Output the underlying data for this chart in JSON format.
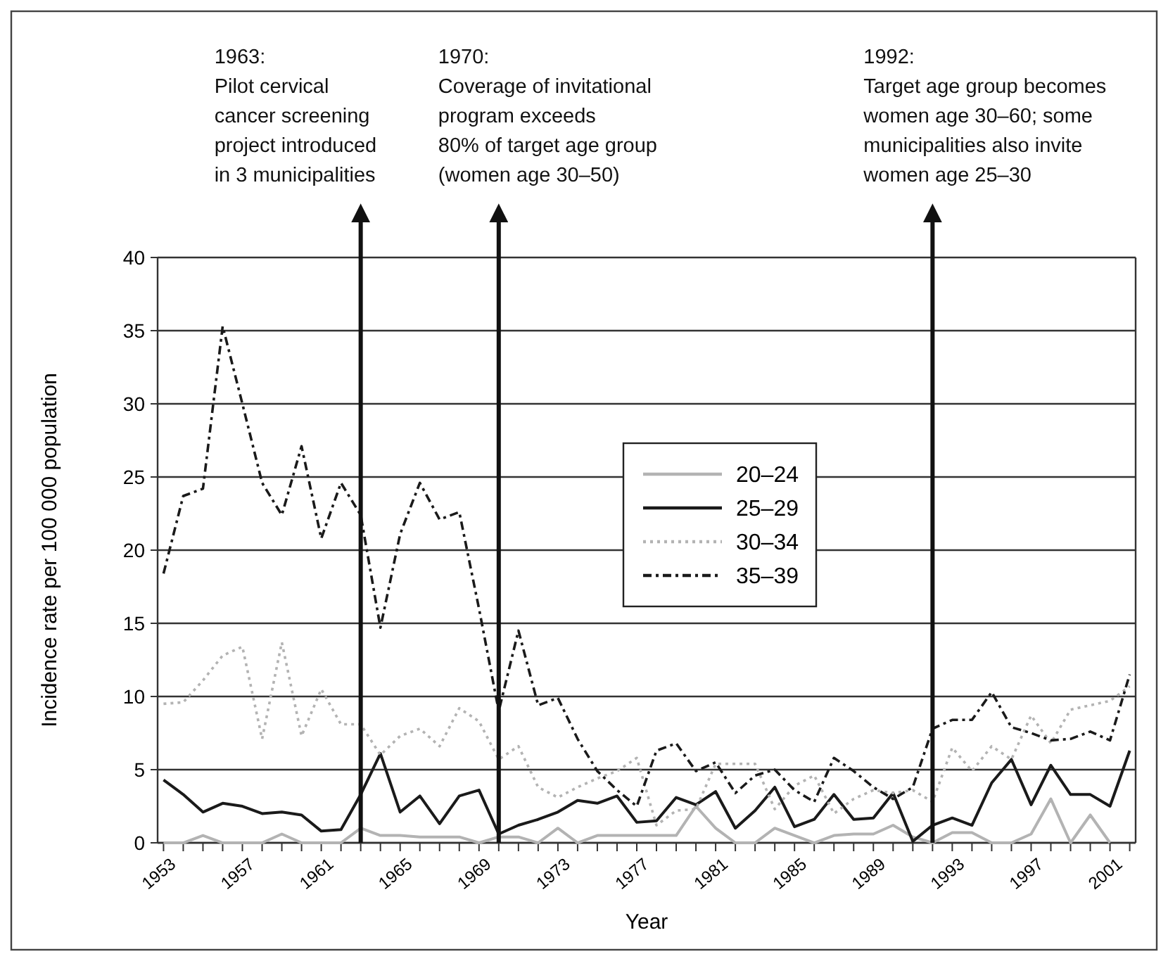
{
  "chart_data": {
    "type": "line",
    "xlabel": "Year",
    "ylabel": "Incidence rate per 100 000 population",
    "x": [
      1953,
      1954,
      1955,
      1956,
      1957,
      1958,
      1959,
      1960,
      1961,
      1962,
      1963,
      1964,
      1965,
      1966,
      1967,
      1968,
      1969,
      1970,
      1971,
      1972,
      1973,
      1974,
      1975,
      1976,
      1977,
      1978,
      1979,
      1980,
      1981,
      1982,
      1983,
      1984,
      1985,
      1986,
      1987,
      1988,
      1989,
      1990,
      1991,
      1992,
      1993,
      1994,
      1995,
      1996,
      1997,
      1998,
      1999,
      2000,
      2001,
      2002
    ],
    "series": [
      {
        "name": "20–24",
        "color": "#b3b3b3",
        "line_style": "solid",
        "values": [
          0,
          0,
          0.5,
          0,
          0,
          0,
          0.6,
          0,
          0,
          0,
          1.0,
          0.5,
          0.5,
          0.4,
          0.4,
          0.4,
          0,
          0.4,
          0.4,
          0,
          1.0,
          0,
          0.5,
          0.5,
          0.5,
          0.5,
          0.5,
          2.5,
          1.0,
          0,
          0,
          1.0,
          0.5,
          0,
          0.5,
          0.6,
          0.6,
          1.2,
          0.4,
          0,
          0.7,
          0.7,
          0,
          0,
          0.6,
          3.0,
          0,
          1.9,
          0,
          null
        ]
      },
      {
        "name": "25–29",
        "color": "#1a1a1a",
        "line_style": "solid",
        "values": [
          4.3,
          3.3,
          2.1,
          2.7,
          2.5,
          2.0,
          2.1,
          1.9,
          0.8,
          0.9,
          3.3,
          6.1,
          2.1,
          3.2,
          1.3,
          3.2,
          3.6,
          0.6,
          1.2,
          1.6,
          2.1,
          2.9,
          2.7,
          3.2,
          1.4,
          1.5,
          3.1,
          2.6,
          3.5,
          1.0,
          2.2,
          3.8,
          1.1,
          1.6,
          3.3,
          1.6,
          1.7,
          3.4,
          0.1,
          1.2,
          1.7,
          1.2,
          4.1,
          5.7,
          2.6,
          5.3,
          3.3,
          3.3,
          2.5,
          6.3
        ]
      },
      {
        "name": "30–34",
        "color": "#b3b3b3",
        "line_style": "dotted",
        "values": [
          9.5,
          9.6,
          11.1,
          12.8,
          13.4,
          7.1,
          13.7,
          7.3,
          10.5,
          8.1,
          8.1,
          6.0,
          7.3,
          7.8,
          6.6,
          9.2,
          8.3,
          5.7,
          6.6,
          3.8,
          3.1,
          3.8,
          4.4,
          4.9,
          5.8,
          1.2,
          2.2,
          2.3,
          5.4,
          5.4,
          5.4,
          2.3,
          3.9,
          4.6,
          2.0,
          3.0,
          3.6,
          3.4,
          3.6,
          2.8,
          6.5,
          4.9,
          6.6,
          5.7,
          8.7,
          6.8,
          9.1,
          9.4,
          9.7,
          10.7
        ]
      },
      {
        "name": "35–39",
        "color": "#1a1a1a",
        "line_style": "dashed",
        "values": [
          18.4,
          23.7,
          24.2,
          35.3,
          30.0,
          24.6,
          22.4,
          27.1,
          20.8,
          24.6,
          22.4,
          14.7,
          21.1,
          24.6,
          22.1,
          22.6,
          16.0,
          9.0,
          14.5,
          9.4,
          9.9,
          7.1,
          4.9,
          3.6,
          2.5,
          6.3,
          6.8,
          4.9,
          5.5,
          3.4,
          4.6,
          5.0,
          3.6,
          2.8,
          5.8,
          4.9,
          3.8,
          3.0,
          3.8,
          7.8,
          8.4,
          8.4,
          10.3,
          7.9,
          7.5,
          7.0,
          7.1,
          7.6,
          7.0,
          11.5
        ]
      }
    ],
    "xlim": [
      1952.7,
      2002.3
    ],
    "xticks": [
      1953,
      {
        "value": 1954,
        "label": null
      },
      {
        "value": 1955,
        "label": null
      },
      {
        "value": 1956,
        "label": null
      },
      1957,
      {
        "value": 1958,
        "label": null
      },
      {
        "value": 1959,
        "label": null
      },
      {
        "value": 1960,
        "label": null
      },
      1961,
      {
        "value": 1962,
        "label": null
      },
      {
        "value": 1963,
        "label": null
      },
      {
        "value": 1964,
        "label": null
      },
      1965,
      {
        "value": 1966,
        "label": null
      },
      {
        "value": 1967,
        "label": null
      },
      {
        "value": 1968,
        "label": null
      },
      1969,
      {
        "value": 1970,
        "label": null
      },
      {
        "value": 1971,
        "label": null
      },
      {
        "value": 1972,
        "label": null
      },
      1973,
      {
        "value": 1974,
        "label": null
      },
      {
        "value": 1975,
        "label": null
      },
      {
        "value": 1976,
        "label": null
      },
      1977,
      {
        "value": 1978,
        "label": null
      },
      {
        "value": 1979,
        "label": null
      },
      {
        "value": 1980,
        "label": null
      },
      1981,
      {
        "value": 1982,
        "label": null
      },
      {
        "value": 1983,
        "label": null
      },
      {
        "value": 1984,
        "label": null
      },
      1985,
      {
        "value": 1986,
        "label": null
      },
      {
        "value": 1987,
        "label": null
      },
      {
        "value": 1988,
        "label": null
      },
      1989,
      {
        "value": 1990,
        "label": null
      },
      {
        "value": 1991,
        "label": null
      },
      {
        "value": 1992,
        "label": null
      },
      1993,
      {
        "value": 1994,
        "label": null
      },
      {
        "value": 1995,
        "label": null
      },
      {
        "value": 1996,
        "label": null
      },
      1997,
      {
        "value": 1998,
        "label": null
      },
      {
        "value": 1999,
        "label": null
      },
      {
        "value": 2000,
        "label": null
      },
      2001,
      {
        "value": 2002,
        "label": null
      }
    ],
    "ylim": [
      0,
      40
    ],
    "yticks": [
      0,
      5,
      10,
      15,
      20,
      25,
      30,
      35,
      40
    ],
    "grid": "y",
    "legend": "center",
    "marker": "none",
    "ref_lines": [
      {
        "axis": "x",
        "value": 1963
      },
      {
        "axis": "x",
        "value": 1970
      },
      {
        "axis": "x",
        "value": 1992
      }
    ],
    "annotations": [
      "1963:\nPilot cervical\ncancer screening\nproject introduced\nin 3 municipalities",
      "1970:\nCoverage of invitational\nprogram exceeds\n80% of target age group\n(women age 30–50)",
      "1992:\nTarget age group becomes\nwomen age 30–60; some\nmunicipalities also invite\nwomen age 25–30"
    ]
  }
}
